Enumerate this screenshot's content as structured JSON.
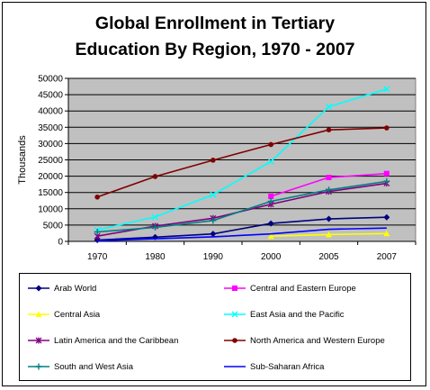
{
  "chart_data": {
    "type": "line",
    "title": [
      "Global Enrollment in Tertiary",
      "Education By Region, 1970 - 2007"
    ],
    "ylabel": "Thousands",
    "categories": [
      "1970",
      "1980",
      "1990",
      "2000",
      "2005",
      "2007"
    ],
    "y_ticks": [
      "0",
      "5000",
      "10000",
      "15000",
      "20000",
      "25000",
      "30000",
      "35000",
      "40000",
      "45000",
      "50000"
    ],
    "ylim": [
      0,
      50000
    ],
    "grid": true,
    "legend_position": "bottom",
    "series": [
      {
        "name": "Arab World",
        "color": "#000080",
        "marker": "diamond",
        "values": [
          400,
          1300,
          2300,
          5500,
          6900,
          7400
        ]
      },
      {
        "name": "Central and Eastern Europe",
        "color": "#ff00ff",
        "marker": "square",
        "values": [
          null,
          null,
          null,
          13800,
          19600,
          20800
        ]
      },
      {
        "name": "Central Asia",
        "color": "#ffff00",
        "marker": "triangle",
        "values": [
          null,
          null,
          null,
          1600,
          2100,
          2400
        ]
      },
      {
        "name": "East Asia and the Pacific",
        "color": "#00ffff",
        "marker": "x",
        "values": [
          3500,
          7500,
          14300,
          24500,
          41300,
          46700
        ]
      },
      {
        "name": "Latin America and the Caribbean",
        "color": "#800080",
        "marker": "star",
        "values": [
          1600,
          4700,
          7100,
          11400,
          15300,
          17800
        ]
      },
      {
        "name": "North America and Western Europe",
        "color": "#800000",
        "marker": "circle",
        "values": [
          13600,
          19900,
          24900,
          29700,
          34200,
          34800
        ]
      },
      {
        "name": "South and West Asia",
        "color": "#008080",
        "marker": "plus",
        "values": [
          2900,
          4300,
          6400,
          12300,
          15800,
          18400
        ]
      },
      {
        "name": "Sub-Saharan Africa",
        "color": "#0000ff",
        "marker": "none",
        "values": [
          200,
          800,
          1400,
          2300,
          3700,
          4100
        ]
      }
    ]
  }
}
